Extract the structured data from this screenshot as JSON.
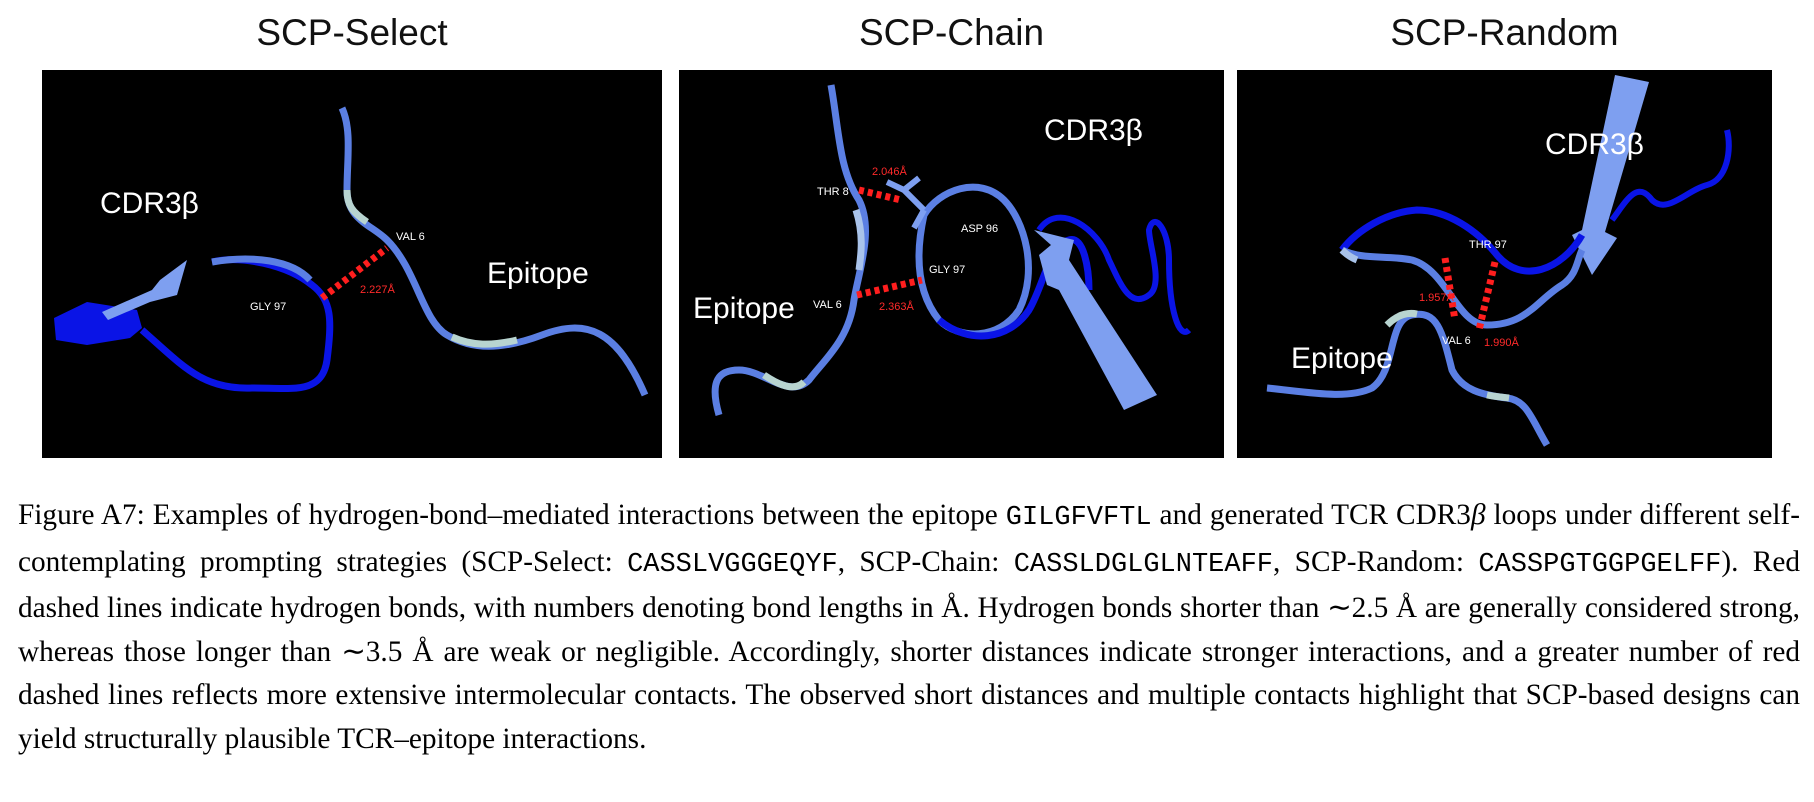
{
  "panels": [
    {
      "title": "SCP-Select",
      "labels": {
        "cdr": "CDR3β",
        "epitope": "Epitope"
      },
      "residues": {
        "a": "VAL 6",
        "b": "GLY 97"
      },
      "distances": [
        "2.227Å"
      ]
    },
    {
      "title": "SCP-Chain",
      "labels": {
        "cdr": "CDR3β",
        "epitope": "Epitope"
      },
      "residues": {
        "a": "THR 8",
        "b": "ASP 96",
        "c": "GLY 97",
        "d": "VAL 6"
      },
      "distances": [
        "2.046Å",
        "2.363Å"
      ]
    },
    {
      "title": "SCP-Random",
      "labels": {
        "cdr": "CDR3β",
        "epitope": "Epitope"
      },
      "residues": {
        "a": "THR 97",
        "b": "VAL 6"
      },
      "distances": [
        "1.957Å",
        "1.990Å"
      ]
    }
  ],
  "caption": {
    "t1": "Figure A7: Examples of hydrogen-bond–mediated interactions between the epitope ",
    "epitope_seq": "GILGFVFTL",
    "t2": " and generated TCR CDR3",
    "beta": "β",
    "t3": " loops under different self-contemplating prompting strategies (SCP-Select: ",
    "seq_select": "CASSLVGGGEQYF",
    "t4": ", SCP-Chain: ",
    "seq_chain": "CASSLDGLGLNTEAFF",
    "t5": ", SCP-Random: ",
    "seq_random": "CASSPGTGGPGELFF",
    "t6": "). Red dashed lines indicate hydrogen bonds, with numbers denoting bond lengths in Å. Hydrogen bonds shorter than ∼2.5 Å are generally considered strong, whereas those longer than ∼3.5 Å are weak or negligible. Accordingly, shorter distances indicate stronger interactions, and a greater number of red dashed lines reflects more extensive intermolecular contacts. The observed short distances and multiple contacts highlight that SCP-based designs can yield structurally plausible TCR–epitope interactions."
  },
  "colors": {
    "panel_bg": "#000000",
    "chain_light": "#5b7fe3",
    "chain_dark": "#0a14e6",
    "chain_pale": "#b8d4d0",
    "arrow_light": "#7e9ff0",
    "hbond": "#ff1e1e"
  }
}
